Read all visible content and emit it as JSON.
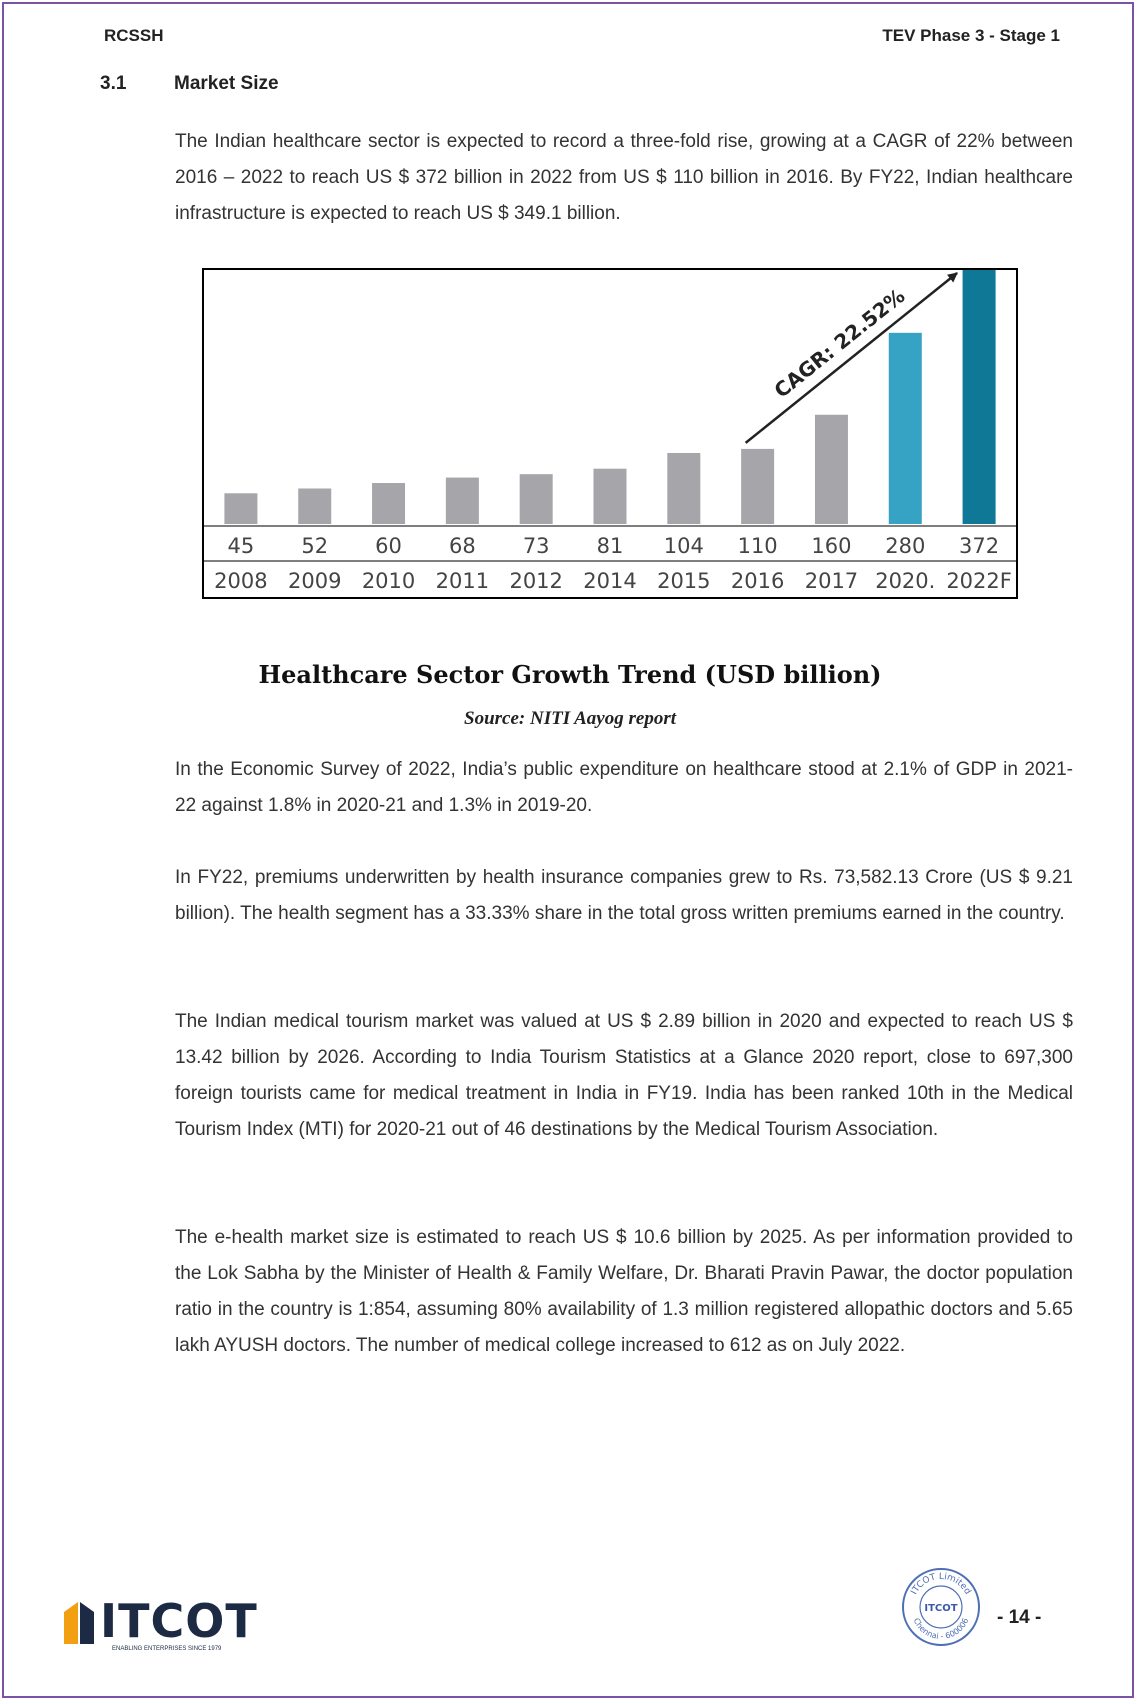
{
  "header": {
    "left": "RCSSH",
    "right": "TEV Phase 3 - Stage 1"
  },
  "section": {
    "number": "3.1",
    "title": "Market Size"
  },
  "paragraphs": [
    "The Indian healthcare sector is expected to record a three-fold rise, growing at a CAGR of 22% between 2016 – 2022 to reach US $ 372 billion in 2022 from US $ 110 billion in 2016. By FY22, Indian healthcare infrastructure is expected to reach US $ 349.1 billion.",
    "In the Economic Survey of 2022, India’s public expenditure on healthcare stood at 2.1% of GDP in 2021-22 against 1.8% in 2020-21 and 1.3% in 2019-20.",
    "In FY22, premiums underwritten by health insurance companies grew to Rs. 73,582.13 Crore (US $ 9.21 billion). The health segment has a 33.33% share in the total gross written premiums earned in the country.",
    "The Indian medical tourism market was valued at US $ 2.89 billion in 2020 and expected to reach US $ 13.42 billion by 2026. According to India Tourism Statistics at a Glance 2020 report, close to 697,300 foreign tourists came for medical treatment in India in FY19. India has been ranked 10th in the Medical Tourism Index (MTI) for 2020-21 out of 46 destinations by the Medical Tourism Association.",
    "The e-health market size is estimated to reach US $ 10.6 billion by 2025. As per information provided to the Lok Sabha by the Minister of Health & Family Welfare, Dr. Bharati Pravin Pawar, the doctor population ratio in the country is 1:854, assuming 80% availability of 1.3 million registered allopathic doctors and 5.65 lakh AYUSH doctors. The number of medical college increased to 612 as on July 2022."
  ],
  "chart_data": {
    "type": "bar",
    "categories": [
      "2008",
      "2009",
      "2010",
      "2011",
      "2012",
      "2014",
      "2015",
      "2016",
      "2017",
      "2020.",
      "2022F"
    ],
    "values": [
      45,
      52,
      60,
      68,
      73,
      81,
      104,
      110,
      160,
      280,
      372
    ],
    "value_labels": [
      "45",
      "52",
      "60",
      "68",
      "73",
      "81",
      "104",
      "110",
      "160",
      "280",
      "372"
    ],
    "bar_colors": [
      "#a6a6aa",
      "#a6a6aa",
      "#a6a6aa",
      "#a6a6aa",
      "#a6a6aa",
      "#a6a6aa",
      "#a6a6aa",
      "#a6a6aa",
      "#a6a6aa",
      "#36a3c4",
      "#0e7896"
    ],
    "ylim": [
      0,
      372
    ],
    "annotation": "CAGR: 22.52%",
    "arrow_from": "2016",
    "arrow_to": "2022F",
    "grid": false
  },
  "figure": {
    "title": "Healthcare Sector Growth Trend (USD billion)",
    "source": "Source: NITI Aayog report"
  },
  "footer": {
    "logo_text": "ITCOT",
    "logo_tagline": "ENABLING ENTERPRISES SINCE 1979",
    "seal_text_top": "ITCOT Limited",
    "seal_text_center": "ITCOT",
    "seal_text_bottom": "Chennai - 600006",
    "page_number": "- 14 -"
  }
}
